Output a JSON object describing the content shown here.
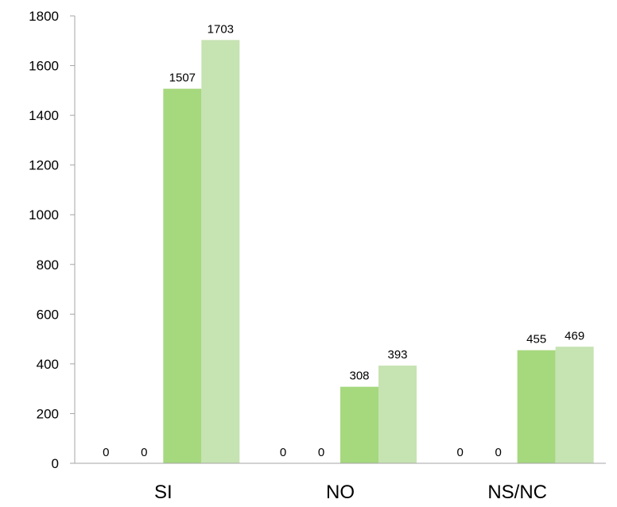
{
  "chart_data": {
    "type": "bar",
    "categories": [
      "SI",
      "NO",
      "NS/NC"
    ],
    "series": [
      {
        "values": [
          0,
          0,
          0
        ],
        "color": "#a6d87e"
      },
      {
        "values": [
          0,
          0,
          0
        ],
        "color": "#c6e3b2"
      },
      {
        "values": [
          1507,
          308,
          455
        ],
        "color": "#a6d87e"
      },
      {
        "values": [
          1703,
          393,
          469
        ],
        "color": "#c6e3b2"
      }
    ],
    "ylim": [
      0,
      1800
    ],
    "yticks": [
      0,
      200,
      400,
      600,
      800,
      1000,
      1200,
      1400,
      1600,
      1800
    ],
    "grid": false,
    "legend": "none",
    "data_labels": true
  }
}
